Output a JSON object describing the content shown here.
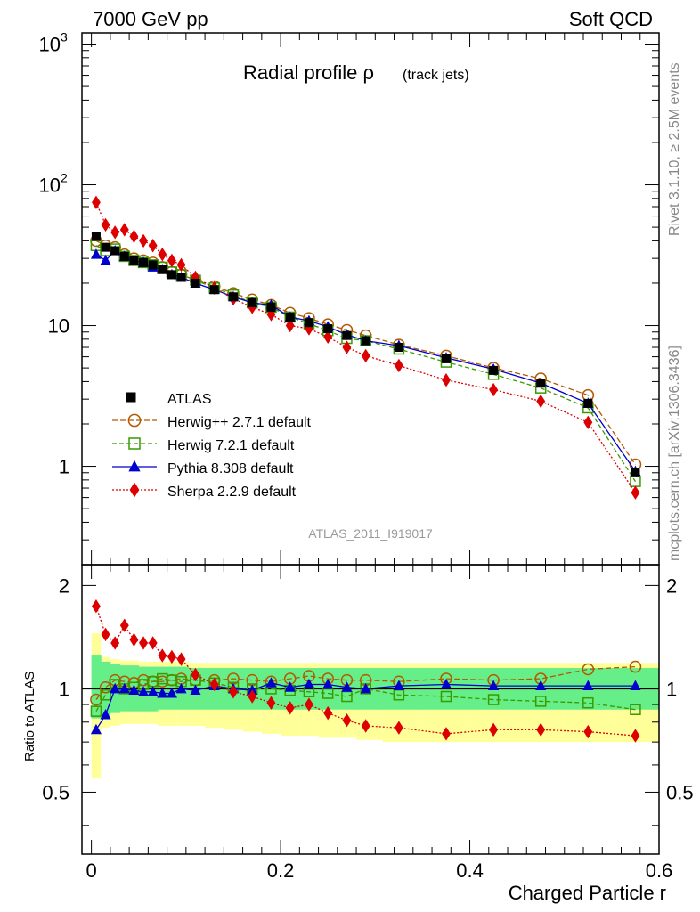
{
  "header": {
    "left": "7000 GeV pp",
    "right": "Soft QCD"
  },
  "side_labels": {
    "rivet": "Rivet 3.1.10, ≥ 2.5M events",
    "mcplots": "mcplots.cern.ch [arXiv:1306.3436]"
  },
  "chart_data": {
    "type": "line",
    "title": "Radial profile ρ",
    "title_suffix": "(track jets)",
    "watermark": "ATLAS_2011_I919017",
    "xlabel": "Charged Particle r",
    "ratio_ylabel": "Ratio to ATLAS",
    "log_y": true,
    "xlim": [
      -0.01,
      0.6
    ],
    "ylim": [
      0.2,
      1200
    ],
    "ratio_ylim": [
      0.33,
      2.3
    ],
    "x_ticks": [
      "0",
      "0.2",
      "0.4",
      "0.6"
    ],
    "y_ticks": [
      "1",
      "10",
      "10^2",
      "10^3"
    ],
    "ratio_ticks": [
      "0.5",
      "1",
      "2"
    ],
    "legend_position": "lower-left",
    "x": [
      0.005,
      0.015,
      0.025,
      0.035,
      0.045,
      0.055,
      0.065,
      0.075,
      0.085,
      0.095,
      0.11,
      0.13,
      0.15,
      0.17,
      0.19,
      0.21,
      0.23,
      0.25,
      0.27,
      0.29,
      0.325,
      0.375,
      0.425,
      0.475,
      0.525,
      0.575
    ],
    "data": {
      "name": "ATLAS",
      "values": [
        43,
        36,
        34,
        31,
        29,
        28,
        27,
        25,
        23,
        22,
        20,
        18,
        16,
        14.5,
        13.5,
        11.5,
        10.5,
        9.5,
        8.5,
        7.8,
        7,
        5.8,
        4.8,
        3.9,
        2.8,
        0.9
      ],
      "ratio_band_inner": [
        [
          0.82,
          1.25
        ],
        [
          0.84,
          1.2
        ],
        [
          0.85,
          1.18
        ],
        [
          0.86,
          1.17
        ],
        [
          0.86,
          1.17
        ],
        [
          0.86,
          1.16
        ],
        [
          0.86,
          1.16
        ],
        [
          0.87,
          1.16
        ],
        [
          0.87,
          1.16
        ],
        [
          0.87,
          1.16
        ],
        [
          0.87,
          1.15
        ],
        [
          0.87,
          1.15
        ],
        [
          0.87,
          1.15
        ],
        [
          0.87,
          1.15
        ],
        [
          0.87,
          1.15
        ],
        [
          0.87,
          1.15
        ],
        [
          0.87,
          1.15
        ],
        [
          0.87,
          1.15
        ],
        [
          0.87,
          1.15
        ],
        [
          0.87,
          1.15
        ],
        [
          0.87,
          1.15
        ],
        [
          0.87,
          1.15
        ],
        [
          0.87,
          1.15
        ],
        [
          0.87,
          1.15
        ],
        [
          0.87,
          1.15
        ],
        [
          0.87,
          1.15
        ]
      ],
      "ratio_band_outer": [
        [
          0.55,
          1.45
        ],
        [
          0.77,
          1.24
        ],
        [
          0.78,
          1.22
        ],
        [
          0.79,
          1.21
        ],
        [
          0.79,
          1.21
        ],
        [
          0.79,
          1.2
        ],
        [
          0.79,
          1.2
        ],
        [
          0.78,
          1.2
        ],
        [
          0.78,
          1.2
        ],
        [
          0.78,
          1.2
        ],
        [
          0.78,
          1.19
        ],
        [
          0.77,
          1.19
        ],
        [
          0.76,
          1.19
        ],
        [
          0.75,
          1.19
        ],
        [
          0.74,
          1.19
        ],
        [
          0.73,
          1.19
        ],
        [
          0.73,
          1.19
        ],
        [
          0.72,
          1.19
        ],
        [
          0.72,
          1.19
        ],
        [
          0.71,
          1.19
        ],
        [
          0.7,
          1.19
        ],
        [
          0.7,
          1.19
        ],
        [
          0.7,
          1.19
        ],
        [
          0.7,
          1.19
        ],
        [
          0.7,
          1.19
        ],
        [
          0.7,
          1.19
        ]
      ]
    },
    "series": [
      {
        "name": "Herwig++ 2.7.1 default",
        "color": "#b35900",
        "marker": "circle-open",
        "dash": "6,3",
        "values": [
          40,
          37,
          36,
          32,
          30,
          29,
          28,
          26,
          24,
          23,
          21,
          19,
          17,
          15.3,
          14,
          12.3,
          11.3,
          10.2,
          9.3,
          8.5,
          7.3,
          6.1,
          5.0,
          4.2,
          3.2,
          1.03
        ],
        "ratio": [
          0.93,
          1.01,
          1.06,
          1.05,
          1.04,
          1.06,
          1.05,
          1.05,
          1.06,
          1.07,
          1.06,
          1.06,
          1.07,
          1.06,
          1.05,
          1.07,
          1.09,
          1.07,
          1.06,
          1.06,
          1.05,
          1.07,
          1.06,
          1.07,
          1.14,
          1.16
        ]
      },
      {
        "name": "Herwig 7.2.1 default",
        "color": "#3a9a00",
        "marker": "square-open",
        "dash": "5,3",
        "values": [
          37,
          34,
          35,
          31,
          29,
          28,
          27,
          26,
          24,
          23,
          21,
          18.5,
          16.5,
          14.5,
          13.5,
          11.5,
          10.3,
          9.2,
          8.1,
          7.8,
          6.8,
          5.5,
          4.5,
          3.6,
          2.6,
          0.78
        ],
        "ratio": [
          0.86,
          0.96,
          1.03,
          1.0,
          1.01,
          1.03,
          1.05,
          1.07,
          1.06,
          1.05,
          1.06,
          1.04,
          1.01,
          1.0,
          1.0,
          0.99,
          0.98,
          0.97,
          0.95,
          1.0,
          0.96,
          0.95,
          0.93,
          0.92,
          0.91,
          0.87
        ]
      },
      {
        "name": "Pythia 8.308 default",
        "color": "#0000cc",
        "marker": "triangle",
        "dash": "",
        "values": [
          32,
          29,
          34,
          31,
          29,
          28,
          26,
          25,
          23,
          22,
          20,
          18,
          16,
          14.5,
          14,
          11.5,
          10.8,
          9.8,
          8.6,
          7.8,
          7.2,
          5.9,
          4.9,
          3.9,
          2.8,
          0.92
        ],
        "ratio": [
          0.76,
          0.84,
          1.0,
          1.0,
          0.99,
          0.98,
          0.98,
          0.97,
          0.97,
          1.0,
          0.99,
          1.02,
          1.0,
          0.99,
          1.04,
          1.01,
          1.03,
          1.03,
          1.01,
          1.0,
          1.02,
          1.03,
          1.02,
          1.02,
          1.02,
          1.02
        ]
      },
      {
        "name": "Sherpa 2.2.9 default",
        "color": "#dd0000",
        "marker": "diamond",
        "dash": "2,2",
        "values": [
          75,
          52,
          46,
          48,
          43,
          40,
          37,
          32,
          29,
          27,
          22,
          18.5,
          15.5,
          13.5,
          12,
          10,
          9.5,
          8.3,
          7,
          6.1,
          5.2,
          4.1,
          3.5,
          2.9,
          2.05,
          0.65
        ],
        "ratio": [
          1.74,
          1.44,
          1.36,
          1.53,
          1.39,
          1.36,
          1.36,
          1.25,
          1.24,
          1.22,
          1.1,
          1.03,
          0.98,
          0.95,
          0.91,
          0.88,
          0.9,
          0.85,
          0.81,
          0.78,
          0.77,
          0.74,
          0.76,
          0.76,
          0.75,
          0.73
        ]
      }
    ]
  }
}
